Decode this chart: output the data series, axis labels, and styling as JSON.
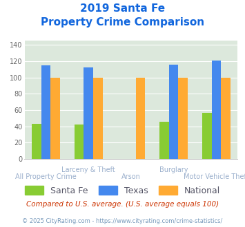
{
  "title_line1": "2019 Santa Fe",
  "title_line2": "Property Crime Comparison",
  "categories": [
    "All Property Crime",
    "Larceny & Theft",
    "Arson",
    "Burglary",
    "Motor Vehicle Theft"
  ],
  "series": {
    "Santa Fe": [
      43,
      42,
      0,
      46,
      57
    ],
    "Texas": [
      115,
      112,
      0,
      116,
      121
    ],
    "National": [
      100,
      100,
      100,
      100,
      100
    ]
  },
  "colors": {
    "Santa Fe": "#88cc33",
    "Texas": "#4488ee",
    "National": "#ffaa33"
  },
  "ylim": [
    0,
    145
  ],
  "yticks": [
    0,
    20,
    40,
    60,
    80,
    100,
    120,
    140
  ],
  "plot_bg": "#dce8dc",
  "title_color": "#1166dd",
  "note_text": "Compared to U.S. average. (U.S. average equals 100)",
  "note_color": "#cc3300",
  "footer_text": "© 2025 CityRating.com - https://www.cityrating.com/crime-statistics/",
  "footer_color": "#7799bb",
  "cat_label_color": "#9aafcc",
  "cat_label_fontsize": 7.0,
  "legend_label_color": "#555566",
  "legend_fontsize": 9.0,
  "bar_width": 0.22
}
